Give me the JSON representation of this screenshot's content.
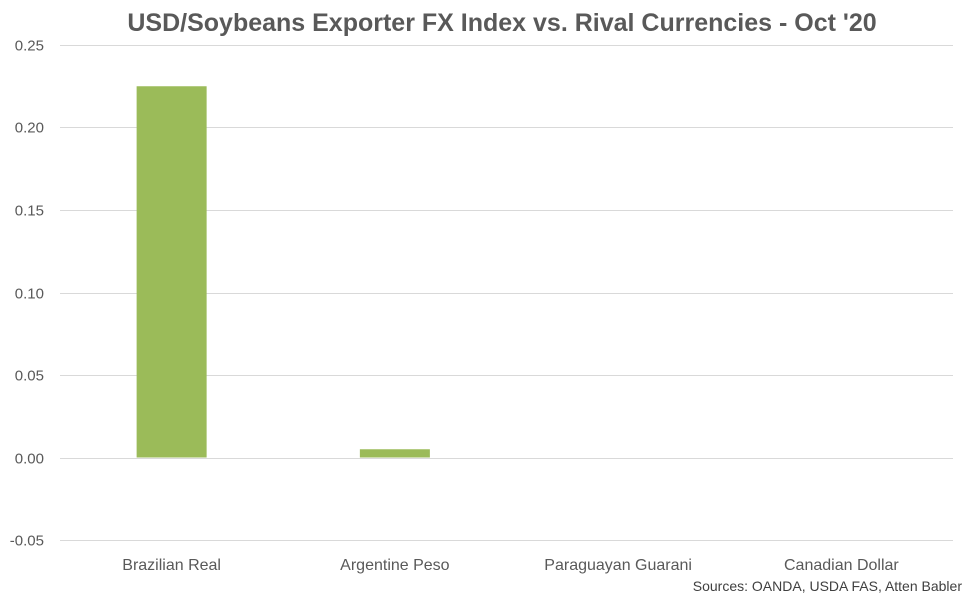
{
  "chart_data": {
    "type": "bar",
    "title": "USD/Soybeans Exporter FX Index vs. Rival Currencies - Oct '20",
    "xlabel": "",
    "ylabel": "",
    "categories": [
      "Brazilian Real",
      "Argentine Peso",
      "Paraguayan Guarani",
      "Canadian Dollar"
    ],
    "values": [
      0.225,
      0.005,
      0.0,
      0.0
    ],
    "ylim": [
      -0.05,
      0.25
    ],
    "yticks": [
      0.25,
      0.2,
      0.15,
      0.1,
      0.05,
      0.0,
      -0.05
    ],
    "ytick_labels": [
      "0.25",
      "0.20",
      "0.15",
      "0.10",
      "0.05",
      "0.00",
      "-0.05"
    ],
    "grid": true,
    "legend": "none",
    "bar_color": "#9bbb59",
    "grid_color": "#d9d9d9",
    "text_color": "#595959"
  },
  "source_note": "Sources: OANDA, USDA FAS, Atten Babler"
}
